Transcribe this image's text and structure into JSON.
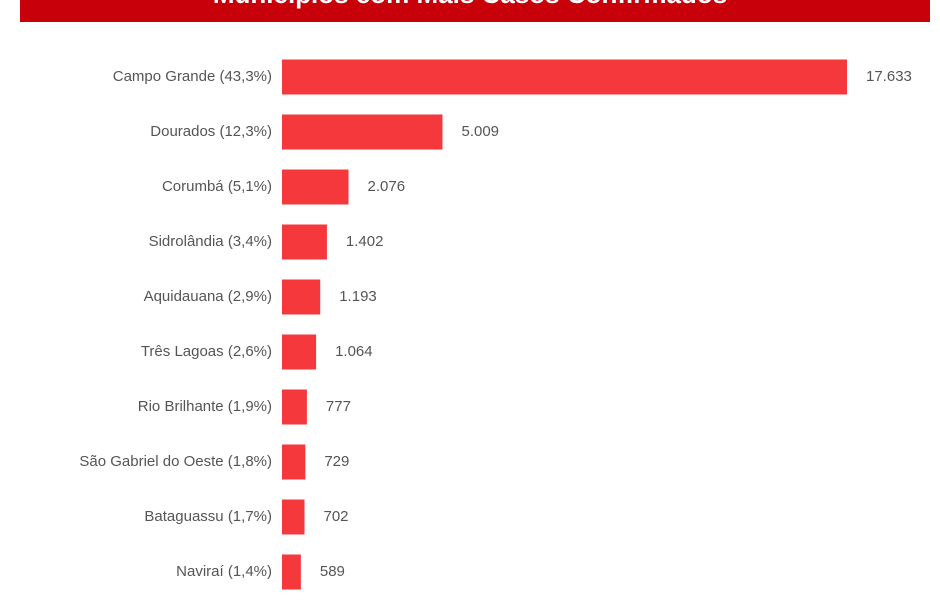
{
  "chart_data": {
    "type": "bar",
    "orientation": "horizontal",
    "title": "Municípios com Mais Casos Confirmados",
    "categories": [
      "Campo Grande (43,3%)",
      "Dourados (12,3%)",
      "Corumbá (5,1%)",
      "Sidrolândia (3,4%)",
      "Aquidauana (2,9%)",
      "Três Lagoas (2,6%)",
      "Rio Brilhante (1,9%)",
      "São Gabriel do Oeste (1,8%)",
      "Bataguassu (1,7%)",
      "Naviraí (1,4%)"
    ],
    "values": [
      17633,
      5009,
      2076,
      1402,
      1193,
      1064,
      777,
      729,
      702,
      589
    ],
    "value_labels": [
      "17.633",
      "5.009",
      "2.076",
      "1.402",
      "1.193",
      "1.064",
      "777",
      "729",
      "702",
      "589"
    ],
    "color": "#f5383c",
    "title_color": "#c8000a"
  }
}
